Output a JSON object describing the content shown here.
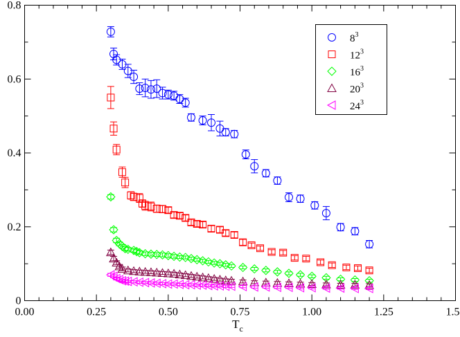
{
  "chart_data": {
    "type": "scatter",
    "title": "",
    "xlabel": "T",
    "xlabel_subscript": "c",
    "ylabel": "",
    "xlim": [
      0.0,
      1.5
    ],
    "ylim": [
      0.0,
      0.8
    ],
    "xticks": [
      "0.00",
      "0.25",
      "0.50",
      "0.75",
      "1.00",
      "1.25",
      "1.50"
    ],
    "yticks": [
      "0",
      "0.2",
      "0.4",
      "0.6",
      "0.8"
    ],
    "legend_position": "top-right",
    "series": [
      {
        "name": "8",
        "exponent": "3",
        "marker": "circle",
        "color": "#0000ff",
        "points": [
          [
            0.3,
            0.728,
            0.014
          ],
          [
            0.31,
            0.668,
            0.016
          ],
          [
            0.32,
            0.652,
            0.014
          ],
          [
            0.34,
            0.64,
            0.014
          ],
          [
            0.36,
            0.622,
            0.018
          ],
          [
            0.38,
            0.606,
            0.018
          ],
          [
            0.4,
            0.574,
            0.016
          ],
          [
            0.42,
            0.576,
            0.024
          ],
          [
            0.44,
            0.572,
            0.024
          ],
          [
            0.46,
            0.574,
            0.024
          ],
          [
            0.48,
            0.562,
            0.016
          ],
          [
            0.5,
            0.558,
            0.012
          ],
          [
            0.52,
            0.555,
            0.012
          ],
          [
            0.54,
            0.546,
            0.012
          ],
          [
            0.56,
            0.536,
            0.012
          ],
          [
            0.58,
            0.496,
            0.01
          ],
          [
            0.62,
            0.488,
            0.012
          ],
          [
            0.65,
            0.482,
            0.022
          ],
          [
            0.68,
            0.466,
            0.02
          ],
          [
            0.7,
            0.456,
            0.01
          ],
          [
            0.73,
            0.451,
            0.01
          ],
          [
            0.77,
            0.396,
            0.012
          ],
          [
            0.8,
            0.364,
            0.018
          ],
          [
            0.84,
            0.345,
            0.01
          ],
          [
            0.88,
            0.325,
            0.01
          ],
          [
            0.92,
            0.28,
            0.012
          ],
          [
            0.96,
            0.276,
            0.01
          ],
          [
            1.01,
            0.258,
            0.01
          ],
          [
            1.05,
            0.237,
            0.018
          ],
          [
            1.1,
            0.199,
            0.01
          ],
          [
            1.15,
            0.188,
            0.01
          ],
          [
            1.2,
            0.153,
            0.01
          ]
        ]
      },
      {
        "name": "12",
        "exponent": "3",
        "marker": "square",
        "color": "#ff0000",
        "points": [
          [
            0.3,
            0.55,
            0.03
          ],
          [
            0.31,
            0.466,
            0.018
          ],
          [
            0.32,
            0.409,
            0.014
          ],
          [
            0.34,
            0.348,
            0.014
          ],
          [
            0.35,
            0.32,
            0.014
          ],
          [
            0.37,
            0.285,
            0.01
          ],
          [
            0.38,
            0.281,
            0.01
          ],
          [
            0.4,
            0.278,
            0.012
          ],
          [
            0.41,
            0.263,
            0.01
          ],
          [
            0.42,
            0.257,
            0.012
          ],
          [
            0.44,
            0.255,
            0.012
          ],
          [
            0.46,
            0.249,
            0.01
          ],
          [
            0.48,
            0.248,
            0.01
          ],
          [
            0.5,
            0.245,
            0.008
          ],
          [
            0.52,
            0.232,
            0.008
          ],
          [
            0.54,
            0.23,
            0.008
          ],
          [
            0.56,
            0.224,
            0.008
          ],
          [
            0.58,
            0.212,
            0.008
          ],
          [
            0.6,
            0.208,
            0.008
          ],
          [
            0.62,
            0.206,
            0.008
          ],
          [
            0.65,
            0.195,
            0.008
          ],
          [
            0.68,
            0.192,
            0.008
          ],
          [
            0.7,
            0.183,
            0.008
          ],
          [
            0.73,
            0.178,
            0.008
          ],
          [
            0.76,
            0.158,
            0.008
          ],
          [
            0.79,
            0.15,
            0.006
          ],
          [
            0.82,
            0.142,
            0.006
          ],
          [
            0.86,
            0.132,
            0.006
          ],
          [
            0.9,
            0.13,
            0.006
          ],
          [
            0.94,
            0.116,
            0.006
          ],
          [
            0.98,
            0.114,
            0.006
          ],
          [
            1.03,
            0.104,
            0.006
          ],
          [
            1.07,
            0.096,
            0.006
          ],
          [
            1.12,
            0.09,
            0.006
          ],
          [
            1.16,
            0.088,
            0.006
          ],
          [
            1.2,
            0.082,
            0.006
          ]
        ]
      },
      {
        "name": "16",
        "exponent": "3",
        "marker": "diamond",
        "color": "#00ff00",
        "points": [
          [
            0.3,
            0.281,
            0.006
          ],
          [
            0.31,
            0.192,
            0.006
          ],
          [
            0.32,
            0.163,
            0.006
          ],
          [
            0.33,
            0.154,
            0.005
          ],
          [
            0.34,
            0.147,
            0.005
          ],
          [
            0.35,
            0.141,
            0.005
          ],
          [
            0.36,
            0.139,
            0.005
          ],
          [
            0.38,
            0.136,
            0.005
          ],
          [
            0.39,
            0.133,
            0.005
          ],
          [
            0.4,
            0.13,
            0.005
          ],
          [
            0.42,
            0.127,
            0.005
          ],
          [
            0.44,
            0.126,
            0.005
          ],
          [
            0.46,
            0.125,
            0.005
          ],
          [
            0.48,
            0.124,
            0.005
          ],
          [
            0.5,
            0.122,
            0.005
          ],
          [
            0.52,
            0.12,
            0.005
          ],
          [
            0.54,
            0.118,
            0.004
          ],
          [
            0.56,
            0.117,
            0.004
          ],
          [
            0.58,
            0.114,
            0.004
          ],
          [
            0.6,
            0.111,
            0.004
          ],
          [
            0.62,
            0.108,
            0.004
          ],
          [
            0.64,
            0.105,
            0.004
          ],
          [
            0.66,
            0.102,
            0.004
          ],
          [
            0.68,
            0.1,
            0.004
          ],
          [
            0.7,
            0.097,
            0.004
          ],
          [
            0.72,
            0.094,
            0.004
          ],
          [
            0.76,
            0.09,
            0.004
          ],
          [
            0.8,
            0.086,
            0.004
          ],
          [
            0.84,
            0.082,
            0.004
          ],
          [
            0.88,
            0.078,
            0.004
          ],
          [
            0.92,
            0.074,
            0.004
          ],
          [
            0.96,
            0.07,
            0.004
          ],
          [
            1.0,
            0.066,
            0.004
          ],
          [
            1.05,
            0.062,
            0.004
          ],
          [
            1.1,
            0.058,
            0.004
          ],
          [
            1.15,
            0.056,
            0.004
          ],
          [
            1.2,
            0.054,
            0.004
          ]
        ]
      },
      {
        "name": "20",
        "exponent": "3",
        "marker": "triangle-up",
        "color": "#800040",
        "points": [
          [
            0.3,
            0.131,
            0.006
          ],
          [
            0.31,
            0.114,
            0.006
          ],
          [
            0.32,
            0.103,
            0.005
          ],
          [
            0.33,
            0.093,
            0.005
          ],
          [
            0.34,
            0.086,
            0.005
          ],
          [
            0.36,
            0.082,
            0.004
          ],
          [
            0.38,
            0.08,
            0.004
          ],
          [
            0.4,
            0.079,
            0.004
          ],
          [
            0.42,
            0.078,
            0.004
          ],
          [
            0.44,
            0.077,
            0.004
          ],
          [
            0.46,
            0.076,
            0.004
          ],
          [
            0.48,
            0.075,
            0.004
          ],
          [
            0.5,
            0.074,
            0.004
          ],
          [
            0.52,
            0.073,
            0.004
          ],
          [
            0.54,
            0.071,
            0.004
          ],
          [
            0.56,
            0.069,
            0.004
          ],
          [
            0.58,
            0.067,
            0.004
          ],
          [
            0.6,
            0.065,
            0.004
          ],
          [
            0.62,
            0.063,
            0.004
          ],
          [
            0.64,
            0.061,
            0.004
          ],
          [
            0.66,
            0.059,
            0.004
          ],
          [
            0.68,
            0.057,
            0.004
          ],
          [
            0.7,
            0.055,
            0.004
          ],
          [
            0.72,
            0.054,
            0.004
          ],
          [
            0.76,
            0.052,
            0.004
          ],
          [
            0.8,
            0.05,
            0.004
          ],
          [
            0.84,
            0.049,
            0.004
          ],
          [
            0.88,
            0.048,
            0.004
          ],
          [
            0.92,
            0.047,
            0.004
          ],
          [
            0.96,
            0.046,
            0.004
          ],
          [
            1.0,
            0.045,
            0.004
          ],
          [
            1.05,
            0.044,
            0.004
          ],
          [
            1.1,
            0.043,
            0.004
          ],
          [
            1.15,
            0.043,
            0.004
          ],
          [
            1.2,
            0.042,
            0.004
          ]
        ]
      },
      {
        "name": "24",
        "exponent": "3",
        "marker": "triangle-left",
        "color": "#ff00ff",
        "points": [
          [
            0.3,
            0.07,
            0.004
          ],
          [
            0.31,
            0.066,
            0.004
          ],
          [
            0.32,
            0.06,
            0.004
          ],
          [
            0.33,
            0.057,
            0.004
          ],
          [
            0.34,
            0.054,
            0.003
          ],
          [
            0.35,
            0.053,
            0.003
          ],
          [
            0.36,
            0.052,
            0.003
          ],
          [
            0.38,
            0.051,
            0.003
          ],
          [
            0.4,
            0.05,
            0.003
          ],
          [
            0.42,
            0.049,
            0.003
          ],
          [
            0.44,
            0.048,
            0.003
          ],
          [
            0.46,
            0.047,
            0.003
          ],
          [
            0.48,
            0.046,
            0.003
          ],
          [
            0.5,
            0.045,
            0.003
          ],
          [
            0.52,
            0.045,
            0.003
          ],
          [
            0.54,
            0.044,
            0.003
          ],
          [
            0.56,
            0.043,
            0.003
          ],
          [
            0.58,
            0.043,
            0.003
          ],
          [
            0.6,
            0.042,
            0.003
          ],
          [
            0.62,
            0.042,
            0.003
          ],
          [
            0.64,
            0.041,
            0.003
          ],
          [
            0.66,
            0.04,
            0.003
          ],
          [
            0.68,
            0.04,
            0.003
          ],
          [
            0.7,
            0.039,
            0.003
          ],
          [
            0.72,
            0.039,
            0.003
          ],
          [
            0.76,
            0.038,
            0.003
          ],
          [
            0.8,
            0.037,
            0.003
          ],
          [
            0.84,
            0.037,
            0.003
          ],
          [
            0.88,
            0.036,
            0.003
          ],
          [
            0.92,
            0.036,
            0.003
          ],
          [
            0.96,
            0.035,
            0.003
          ],
          [
            1.0,
            0.035,
            0.003
          ],
          [
            1.05,
            0.034,
            0.003
          ],
          [
            1.1,
            0.034,
            0.003
          ],
          [
            1.15,
            0.033,
            0.003
          ],
          [
            1.2,
            0.033,
            0.003
          ]
        ]
      }
    ]
  }
}
